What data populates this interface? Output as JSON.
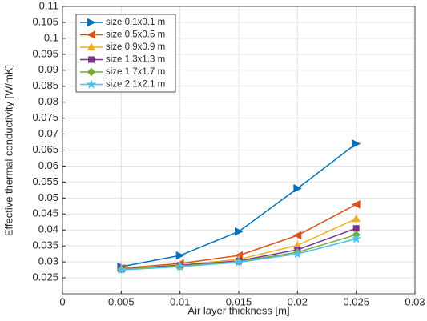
{
  "chart_data": {
    "type": "line",
    "x_label": "Air layer thickness [m]",
    "y_label": "Effective thermal conductivity [W/mK]",
    "x": [
      0.005,
      0.01,
      0.015,
      0.02,
      0.025
    ],
    "series": [
      {
        "name": "size 0.1x0.1 m",
        "color": "#0072BD",
        "marker": "triangle-right",
        "values": [
          0.0285,
          0.032,
          0.0395,
          0.053,
          0.067
        ]
      },
      {
        "name": "size 0.5x0.5 m",
        "color": "#D95319",
        "marker": "triangle-left",
        "values": [
          0.028,
          0.0295,
          0.032,
          0.0383,
          0.048
        ]
      },
      {
        "name": "size 0.9x0.9 m",
        "color": "#EDB120",
        "marker": "triangle-up",
        "values": [
          0.028,
          0.029,
          0.0308,
          0.0352,
          0.0435
        ]
      },
      {
        "name": "size 1.3x1.3 m",
        "color": "#7E2F8E",
        "marker": "square",
        "values": [
          0.0278,
          0.0289,
          0.0303,
          0.0338,
          0.0405
        ]
      },
      {
        "name": "size 1.7x1.7 m",
        "color": "#77AC30",
        "marker": "diamond",
        "values": [
          0.0277,
          0.0287,
          0.0301,
          0.033,
          0.0385
        ]
      },
      {
        "name": "size 2.1x2.1 m",
        "color": "#4DBEEE",
        "marker": "star",
        "values": [
          0.0275,
          0.0285,
          0.0299,
          0.0325,
          0.0372
        ]
      }
    ],
    "xlim": [
      0,
      0.03
    ],
    "xticks": [
      0,
      0.005,
      0.01,
      0.015,
      0.02,
      0.025,
      0.03
    ],
    "ylim": [
      0.02,
      0.11
    ],
    "yticks": [
      0.025,
      0.03,
      0.035,
      0.04,
      0.045,
      0.05,
      0.055,
      0.06,
      0.065,
      0.07,
      0.075,
      0.08,
      0.085,
      0.09,
      0.095,
      0.1,
      0.105,
      0.11
    ],
    "grid": true,
    "legend": "top-left"
  }
}
